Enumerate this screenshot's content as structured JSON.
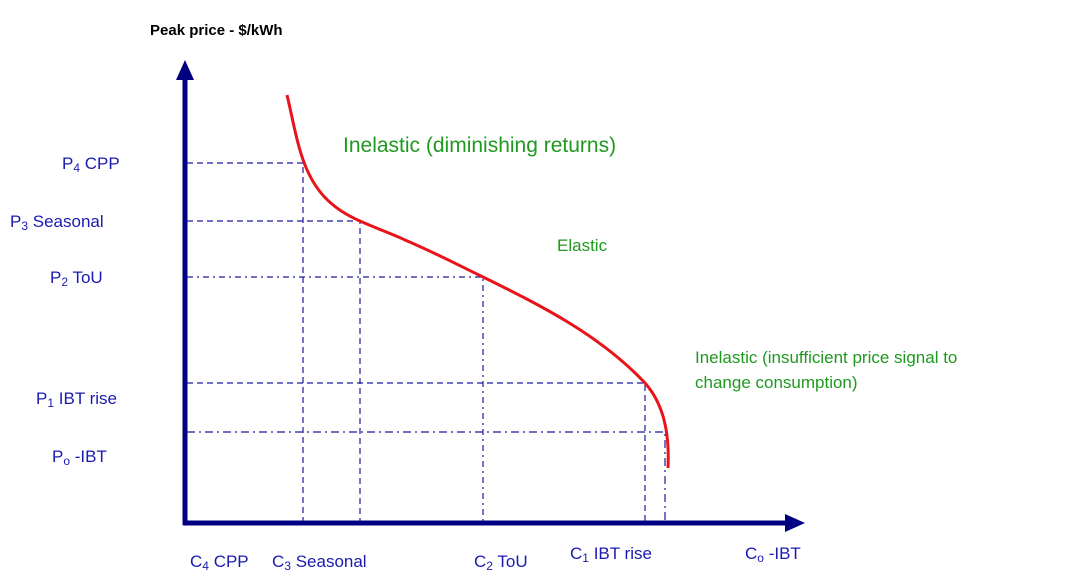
{
  "axis_title": "Peak price - $/kWh",
  "price_levels": [
    {
      "letter": "P",
      "sub": "4",
      "text": " CPP"
    },
    {
      "letter": "P",
      "sub": "3",
      "text": " Seasonal"
    },
    {
      "letter": "P",
      "sub": "2",
      "text": " ToU"
    },
    {
      "letter": "P",
      "sub": "1",
      "text": " IBT rise"
    },
    {
      "letter": "P",
      "sub": "o",
      "text": " -IBT"
    }
  ],
  "consumption_levels": [
    {
      "letter": "C",
      "sub": "4",
      "text": " CPP"
    },
    {
      "letter": "C",
      "sub": "3",
      "text": " Seasonal"
    },
    {
      "letter": "C",
      "sub": "2",
      "text": " ToU"
    },
    {
      "letter": "C",
      "sub": "1",
      "text": " IBT rise"
    },
    {
      "letter": "C",
      "sub": "o",
      "text": " -IBT"
    }
  ],
  "annotations": {
    "inelastic_top": "Inelastic (diminishing returns)",
    "elastic": "Elastic",
    "inelastic_bottom": [
      "Inelastic (insufficient price signal to",
      "change consumption)"
    ]
  }
}
